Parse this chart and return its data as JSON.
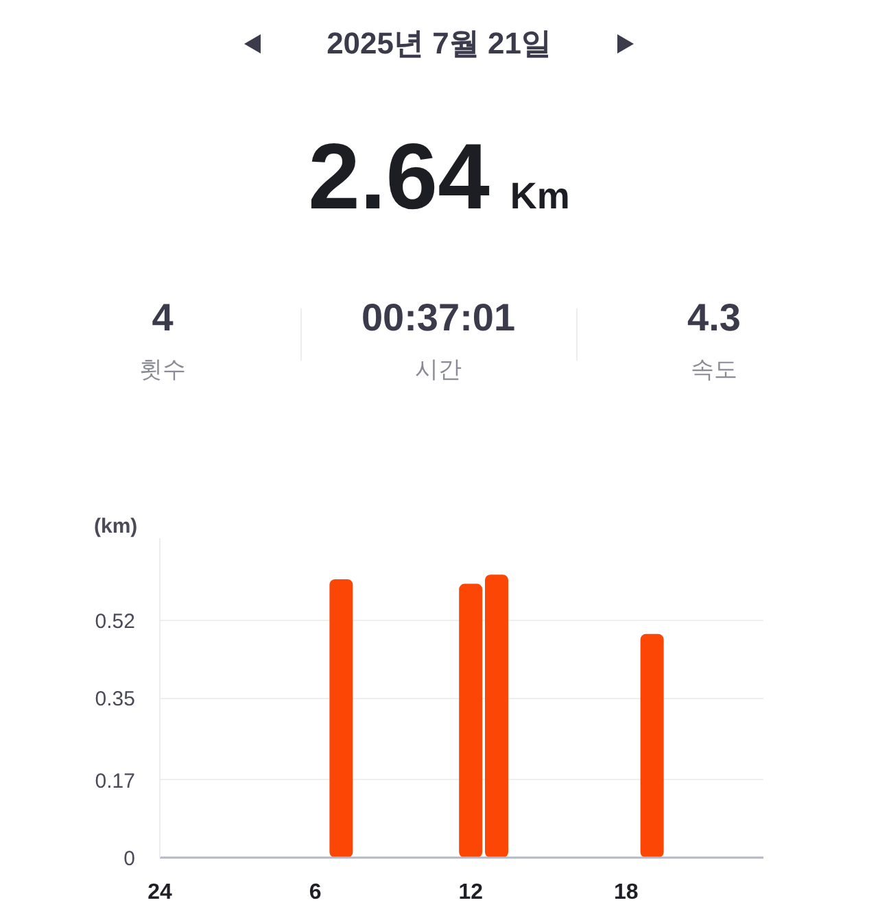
{
  "chart_data": {
    "type": "bar",
    "title": "2025년 7월 21일",
    "ylabel": "(km)",
    "annotations": [
      "2.64",
      "Km",
      "4",
      "횟수",
      "00:37:01",
      "시간",
      "4.3",
      "속도"
    ],
    "categories": [
      "24",
      null,
      null,
      null,
      null,
      null,
      "6",
      null,
      null,
      null,
      null,
      null,
      "12",
      null,
      null,
      null,
      null,
      null,
      "18",
      null,
      null,
      null,
      null,
      null
    ],
    "values": [
      null,
      null,
      null,
      null,
      null,
      null,
      null,
      0.61,
      null,
      null,
      null,
      null,
      0.6,
      0.62,
      null,
      null,
      null,
      null,
      null,
      0.49,
      null,
      null,
      null,
      null
    ],
    "color": "#fc4605",
    "ylim": [
      0,
      0.7
    ],
    "yticks": [
      0,
      0.17,
      0.35,
      0.52
    ],
    "grid": "y"
  }
}
